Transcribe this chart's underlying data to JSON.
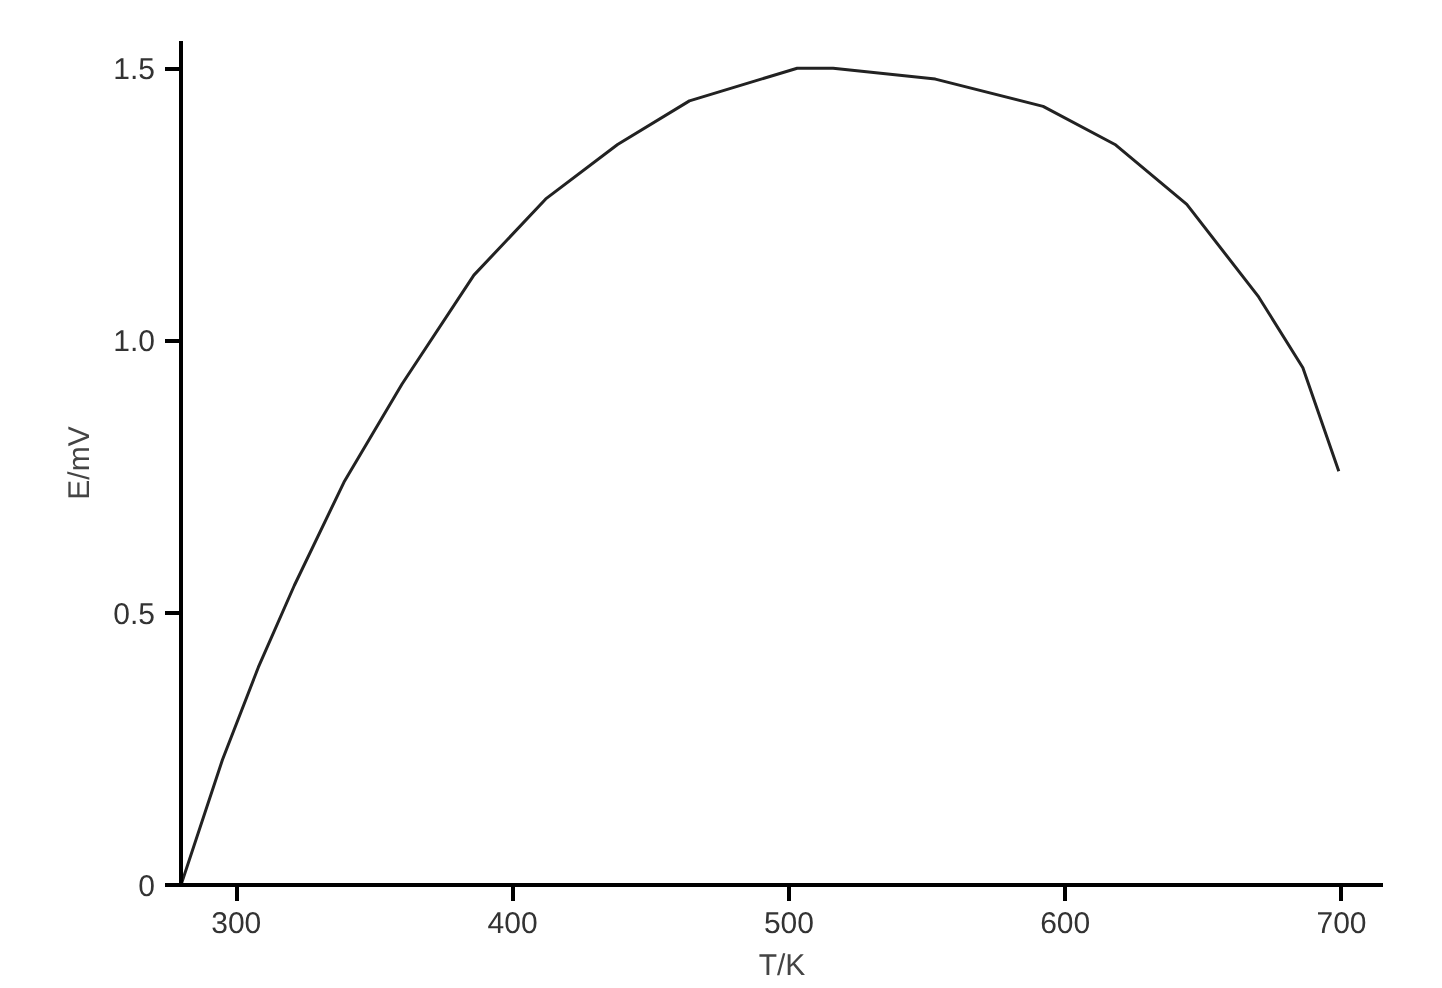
{
  "chart_data": {
    "type": "line",
    "xlabel": "T/K",
    "ylabel": "E/mV",
    "x": [
      280,
      295,
      308,
      321,
      339,
      360,
      386,
      412,
      438,
      464,
      503,
      516,
      553,
      592,
      618,
      644,
      670,
      686,
      699
    ],
    "series": [
      {
        "color": "#222222",
        "values": [
          0,
          0.23,
          0.4,
          0.55,
          0.74,
          0.92,
          1.12,
          1.26,
          1.36,
          1.44,
          1.5,
          1.5,
          1.48,
          1.43,
          1.36,
          1.25,
          1.08,
          0.95,
          0.76
        ]
      }
    ],
    "xlim": [
      280,
      715
    ],
    "ylim": [
      0,
      1.55
    ],
    "xticks": [
      300,
      400,
      500,
      600,
      700
    ],
    "yticks": [
      0,
      0.5,
      {
        "value": 1,
        "label": "1.0"
      },
      1.5
    ],
    "grid": false,
    "marker": "none",
    "line_style": "solid"
  }
}
